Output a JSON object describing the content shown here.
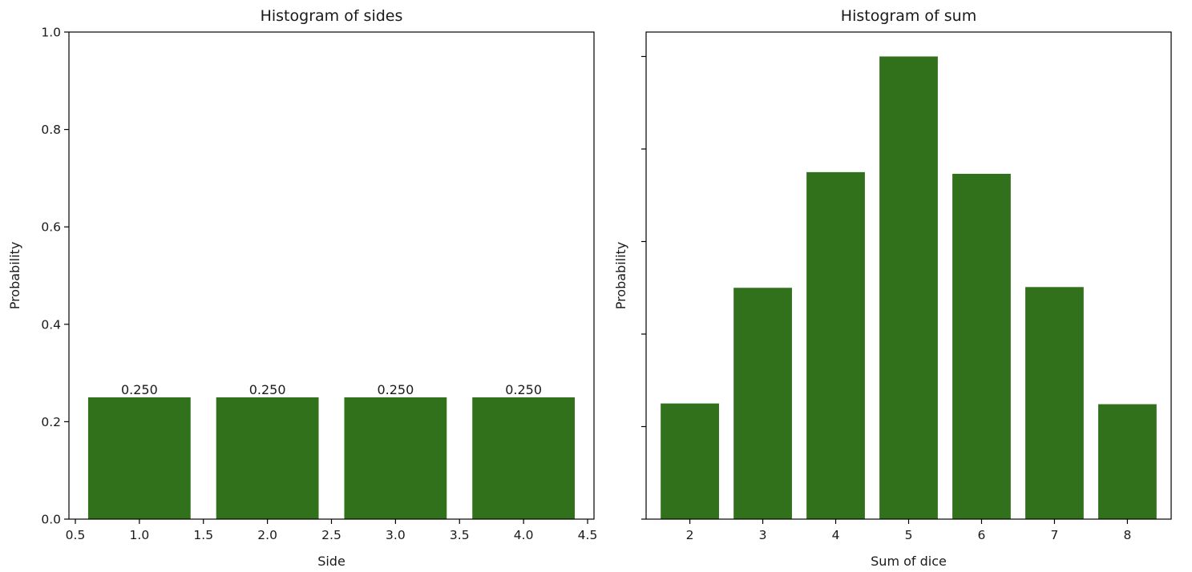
{
  "chart_data": [
    {
      "type": "bar",
      "title": "Histogram of sides",
      "xlabel": "Side",
      "ylabel": "Probability",
      "x": [
        1,
        2,
        3,
        4
      ],
      "values": [
        0.25,
        0.25,
        0.25,
        0.25
      ],
      "data_labels": [
        "0.250",
        "0.250",
        "0.250",
        "0.250"
      ],
      "xlim": [
        0.45,
        4.55
      ],
      "ylim": [
        0,
        1.0
      ],
      "xticks": [
        0.5,
        1.0,
        1.5,
        2.0,
        2.5,
        3.0,
        3.5,
        4.0,
        4.5
      ],
      "xtick_labels": [
        "0.5",
        "1.0",
        "1.5",
        "2.0",
        "2.5",
        "3.0",
        "3.5",
        "4.0",
        "4.5"
      ],
      "yticks": [
        0.0,
        0.2,
        0.4,
        0.6,
        0.8,
        1.0
      ],
      "ytick_labels": [
        "0.0",
        "0.2",
        "0.4",
        "0.6",
        "0.8",
        "1.0"
      ],
      "bar_color": "#31711b",
      "grid": false
    },
    {
      "type": "bar",
      "title": "Histogram of sum",
      "xlabel": "Sum of dice",
      "ylabel": "Probability",
      "categories": [
        "2",
        "3",
        "4",
        "5",
        "6",
        "7",
        "8"
      ],
      "x": [
        2,
        3,
        4,
        5,
        6,
        7,
        8
      ],
      "values": [
        0.0625,
        0.125,
        0.1875,
        0.25,
        0.1866,
        0.1254,
        0.0621
      ],
      "xlim": [
        1.4,
        8.6
      ],
      "ylim": [
        0,
        0.2632
      ],
      "yticks": [
        0.0,
        0.05,
        0.1,
        0.15,
        0.2,
        0.25
      ],
      "ytick_labels": [],
      "bar_color": "#31711b",
      "grid": false
    }
  ]
}
